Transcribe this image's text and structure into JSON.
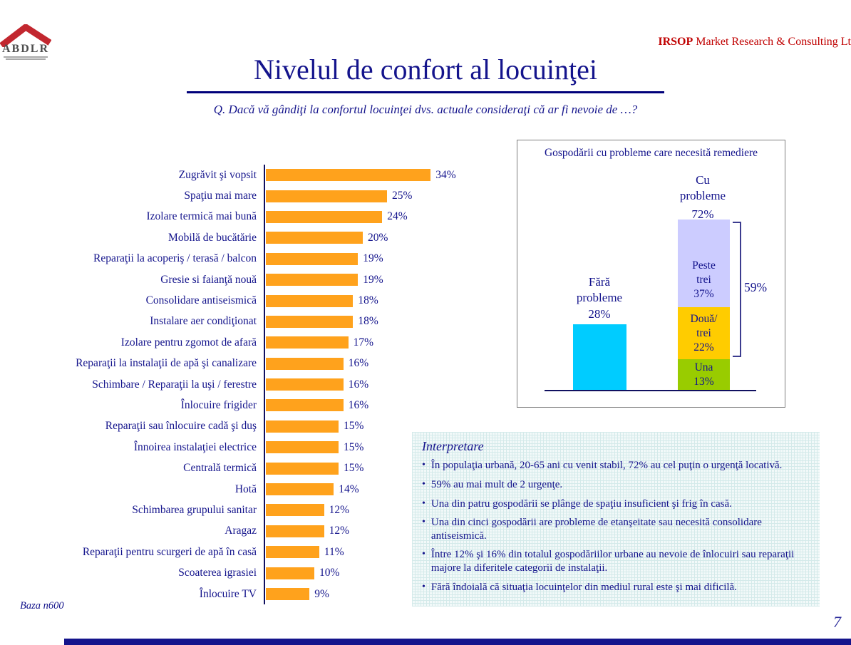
{
  "header": {
    "logo_text": "ABDLR",
    "agency_bold": "IRSOP",
    "agency_rest": " Market Research & Consulting Lt",
    "title": "Nivelul de confort al locuinţei",
    "question": "Q. Dacă vă gândiţi la confortul locuinţei dvs. actuale consideraţi că ar fi nevoie de …?"
  },
  "chart_data": [
    {
      "type": "bar",
      "orientation": "horizontal",
      "title": "",
      "categories": [
        "Zugrăvit şi vopsit",
        "Spaţiu mai mare",
        "Izolare termică mai bună",
        "Mobilă de bucătărie",
        "Reparaţii la acoperiş / terasă / balcon",
        "Gresie si faianţă nouă",
        "Consolidare antiseismică",
        "Instalare aer condiţionat",
        "Izolare pentru zgomot de afară",
        "Reparaţii la instalaţii de apă şi canalizare",
        "Schimbare / Reparaţii la uşi / ferestre",
        "Înlocuire frigider",
        "Reparaţii sau înlocuire cadă şi duş",
        "Înnoirea instalaţiei electrice",
        "Centrală termică",
        "Hotă",
        "Schimbarea grupului sanitar",
        "Aragaz",
        "Reparaţii pentru scurgeri de apă în casă",
        "Scoaterea igrasiei",
        "Înlocuire TV"
      ],
      "values": [
        34,
        25,
        24,
        20,
        19,
        19,
        18,
        18,
        17,
        16,
        16,
        16,
        15,
        15,
        15,
        14,
        12,
        12,
        11,
        10,
        9
      ],
      "unit": "%",
      "bar_color": "#ffa21c",
      "xlim": [
        0,
        36
      ],
      "grid": false,
      "legend": false
    },
    {
      "type": "bar",
      "title": "Gospodării cu probleme care necesită remediere",
      "categories": [
        "Fără probleme",
        "Cu probleme"
      ],
      "values": [
        28,
        72
      ],
      "series_note": "Cu probleme stacked: Una 13%, Două/trei 22%, Peste trei 37%; bracket 59% = mai mult de 2 urgenţe",
      "unit": "%"
    }
  ],
  "problems_box": {
    "title": "Gospodării cu probleme care necesită remediere",
    "left_bar": {
      "label_lines": [
        "Fără",
        "probleme"
      ],
      "value": "28%",
      "color": "#00ccff"
    },
    "right_bar": {
      "label_lines": [
        "Cu",
        "probleme"
      ],
      "value": "72%",
      "segments": [
        {
          "lines": [
            "Peste",
            "trei"
          ],
          "value": "37%",
          "pct": 37,
          "color": "#ccccff"
        },
        {
          "lines": [
            "Două/",
            "trei"
          ],
          "value": "22%",
          "pct": 22,
          "color": "#ffcc00"
        },
        {
          "lines": [
            "Una"
          ],
          "value": "13%",
          "pct": 13,
          "color": "#99cc00"
        }
      ]
    },
    "bracket_value": "59%"
  },
  "interpretation": {
    "title": "Interpretare",
    "bullets": [
      "În populaţia urbană, 20-65 ani cu venit stabil, 72% au cel puţin o urgenţă locativă.",
      "59% au mai mult de 2 urgenţe.",
      "Una din patru gospodării se plânge de spaţiu insuficient şi frig în casă.",
      "Una din cinci gospodării are probleme de etanşeitate sau necesită consolidare antiseismică.",
      "Între 12% şi 16% din totalul gospodăriilor urbane au nevoie de înlocuiri sau reparaţii majore la diferitele categorii de instalaţii.",
      "Fără îndoială că situaţia locuinţelor din mediul rural este şi mai dificilă."
    ]
  },
  "footer": {
    "base_note": "Baza n600",
    "page_number": "7"
  },
  "colors": {
    "navy_text": "#14148c",
    "accent_red": "#c00000",
    "orange_bar": "#ffa21c",
    "cyan_bar": "#00ccff",
    "lavender_segment": "#ccccff",
    "gold_segment": "#ffcc00",
    "green_segment": "#99cc00"
  }
}
